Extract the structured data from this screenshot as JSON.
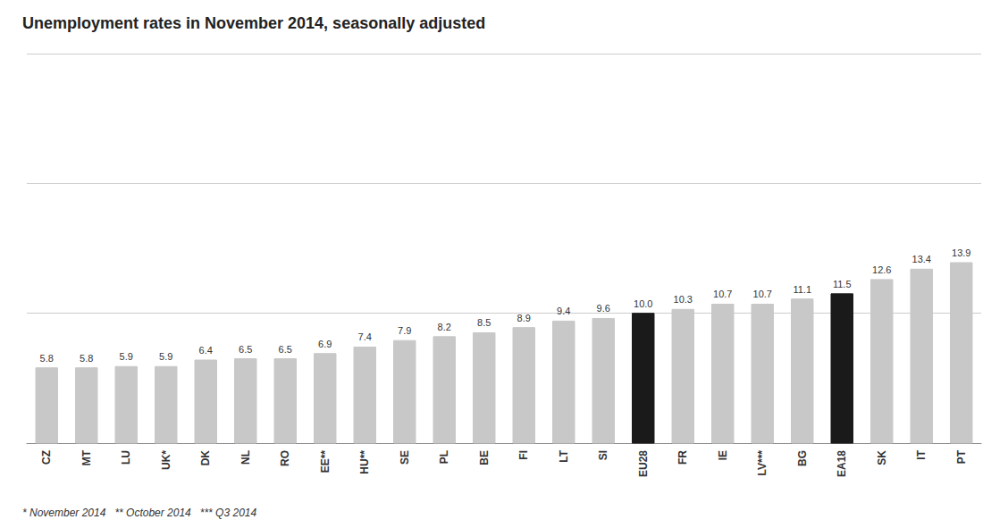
{
  "chart_data": {
    "type": "bar",
    "title": "Unemployment rates in November 2014, seasonally adjusted",
    "footnote": "* November 2014   ** October 2014   *** Q3 2014",
    "categories": [
      "CZ",
      "MT",
      "LU",
      "UK*",
      "DK",
      "NL",
      "RO",
      "EE**",
      "HU**",
      "SE",
      "PL",
      "BE",
      "FI",
      "LT",
      "SI",
      "EU28",
      "FR",
      "IE",
      "LV***",
      "BG",
      "EA18",
      "SK",
      "IT",
      "PT"
    ],
    "values": [
      5.8,
      5.8,
      5.9,
      5.9,
      6.4,
      6.5,
      6.5,
      6.9,
      7.4,
      7.9,
      8.2,
      8.5,
      8.9,
      9.4,
      9.6,
      10.0,
      10.3,
      10.7,
      10.7,
      11.1,
      11.5,
      12.6,
      13.4,
      13.9
    ],
    "value_labels": [
      "5.8",
      "5.8",
      "5.9",
      "5.9",
      "6.4",
      "6.5",
      "6.5",
      "6.9",
      "7.4",
      "7.9",
      "8.2",
      "8.5",
      "8.9",
      "9.4",
      "9.6",
      "10.0",
      "10.3",
      "10.7",
      "10.7",
      "11.1",
      "11.5",
      "12.6",
      "13.4",
      "13.9"
    ],
    "colors": [
      "#c8c8c8",
      "#c8c8c8",
      "#c8c8c8",
      "#c8c8c8",
      "#c8c8c8",
      "#c8c8c8",
      "#c8c8c8",
      "#c8c8c8",
      "#c8c8c8",
      "#c8c8c8",
      "#c8c8c8",
      "#c8c8c8",
      "#c8c8c8",
      "#c8c8c8",
      "#c8c8c8",
      "#1a1a1a",
      "#c8c8c8",
      "#c8c8c8",
      "#c8c8c8",
      "#c8c8c8",
      "#1a1a1a",
      "#c8c8c8",
      "#c8c8c8",
      "#c8c8c8"
    ],
    "ylim": [
      0,
      30
    ],
    "yticks": [
      10,
      20,
      30
    ],
    "grid": true,
    "data_labels": true,
    "tick_labels": "x"
  }
}
